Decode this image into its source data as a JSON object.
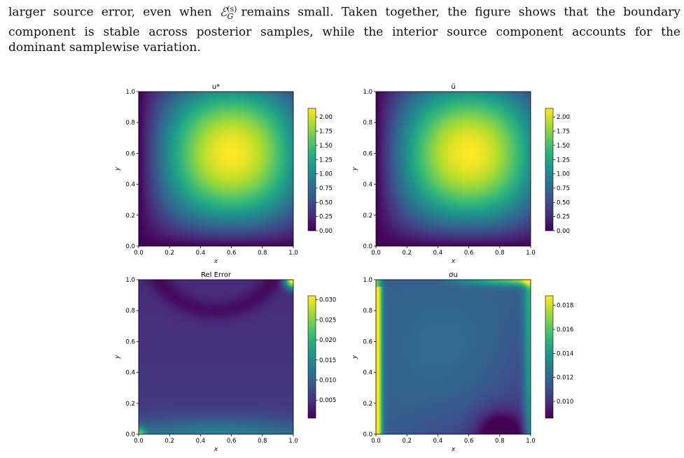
{
  "paragraph": {
    "line1_before": "larger source error, even when",
    "line1_math_base": "ℰ",
    "line1_math_sup": "(s)",
    "line1_math_sub": "G",
    "line1_after": "remains small. Taken together, the figure shows that the boundary",
    "line2": "component is stable across posterior samples, while the interior source component accounts for the",
    "line3": "dominant samplewise variation."
  },
  "chart_data": [
    {
      "type": "heatmap",
      "title": "u*",
      "xlabel": "x",
      "ylabel": "y",
      "xlim": [
        0,
        1
      ],
      "ylim": [
        0,
        1
      ],
      "x_ticks": [
        "0.0",
        "0.2",
        "0.4",
        "0.6",
        "0.8",
        "1.0"
      ],
      "y_ticks": [
        "0.0",
        "0.2",
        "0.4",
        "0.6",
        "0.8",
        "1.0"
      ],
      "colormap": "viridis",
      "color_range": [
        0,
        2.15
      ],
      "colorbar_ticks": [
        "0.00",
        "0.25",
        "0.50",
        "0.75",
        "1.00",
        "1.25",
        "1.50",
        "1.75",
        "2.00"
      ],
      "colorbar_values": [
        0,
        0.25,
        0.5,
        0.75,
        1.0,
        1.25,
        1.5,
        1.75,
        2.0
      ],
      "peak": {
        "x": 0.6,
        "y": 0.6,
        "value": 2.15
      }
    },
    {
      "type": "heatmap",
      "title": "ū",
      "xlabel": "x",
      "ylabel": "y",
      "xlim": [
        0,
        1
      ],
      "ylim": [
        0,
        1
      ],
      "x_ticks": [
        "0.0",
        "0.2",
        "0.4",
        "0.6",
        "0.8",
        "1.0"
      ],
      "y_ticks": [
        "0.0",
        "0.2",
        "0.4",
        "0.6",
        "0.8",
        "1.0"
      ],
      "colormap": "viridis",
      "color_range": [
        0,
        2.15
      ],
      "colorbar_ticks": [
        "0.00",
        "0.25",
        "0.50",
        "0.75",
        "1.00",
        "1.25",
        "1.50",
        "1.75",
        "2.00"
      ],
      "colorbar_values": [
        0,
        0.25,
        0.5,
        0.75,
        1.0,
        1.25,
        1.5,
        1.75,
        2.0
      ],
      "peak": {
        "x": 0.6,
        "y": 0.6,
        "value": 2.15
      }
    },
    {
      "type": "heatmap",
      "title": "Rel Error",
      "xlabel": "x",
      "ylabel": "y",
      "xlim": [
        0,
        1
      ],
      "ylim": [
        0,
        1
      ],
      "x_ticks": [
        "0.0",
        "0.2",
        "0.4",
        "0.6",
        "0.8",
        "1.0"
      ],
      "y_ticks": [
        "0.0",
        "0.2",
        "0.4",
        "0.6",
        "0.8",
        "1.0"
      ],
      "colormap": "viridis",
      "color_range": [
        0.0005,
        0.031
      ],
      "colorbar_ticks": [
        "0.005",
        "0.010",
        "0.015",
        "0.020",
        "0.025",
        "0.030"
      ],
      "colorbar_values": [
        0.005,
        0.01,
        0.015,
        0.02,
        0.025,
        0.03
      ],
      "peak": {
        "x": 1.0,
        "y": 1.0,
        "value": 0.031
      }
    },
    {
      "type": "heatmap",
      "title": "σu",
      "xlabel": "x",
      "ylabel": "y",
      "xlim": [
        0,
        1
      ],
      "ylim": [
        0,
        1
      ],
      "x_ticks": [
        "0.0",
        "0.2",
        "0.4",
        "0.6",
        "0.8",
        "1.0"
      ],
      "y_ticks": [
        "0.0",
        "0.2",
        "0.4",
        "0.6",
        "0.8",
        "1.0"
      ],
      "colormap": "viridis",
      "color_range": [
        0.0086,
        0.0188
      ],
      "colorbar_ticks": [
        "0.010",
        "0.012",
        "0.014",
        "0.016",
        "0.018"
      ],
      "colorbar_values": [
        0.01,
        0.012,
        0.014,
        0.016,
        0.018
      ],
      "peak": {
        "x": 0.0,
        "y": 0.05,
        "value": 0.0188
      }
    }
  ]
}
